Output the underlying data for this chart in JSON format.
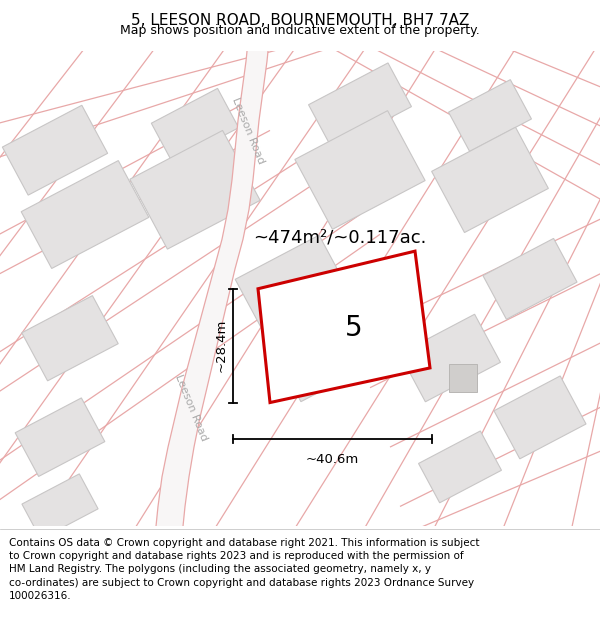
{
  "title": "5, LEESON ROAD, BOURNEMOUTH, BH7 7AZ",
  "subtitle": "Map shows position and indicative extent of the property.",
  "footer": "Contains OS data © Crown copyright and database right 2021. This information is subject\nto Crown copyright and database rights 2023 and is reproduced with the permission of\nHM Land Registry. The polygons (including the associated geometry, namely x, y\nco-ordinates) are subject to Crown copyright and database rights 2023 Ordnance Survey\n100026316.",
  "area_label": "~474m²/~0.117ac.",
  "property_number": "5",
  "dim_width": "~40.6m",
  "dim_height": "~28.4m",
  "road_label_lower": "Leeson Road",
  "road_label_upper": "Leeson Road",
  "map_bg": "#f2f0f0",
  "block_fill": "#e4e2e2",
  "block_edge": "#c8c6c6",
  "road_line_color": "#e8a8a8",
  "road_fill": "#ffffff",
  "property_fill": "#ffffff",
  "property_edge": "#cc0000",
  "title_fontsize": 11,
  "subtitle_fontsize": 9,
  "footer_fontsize": 7.5
}
